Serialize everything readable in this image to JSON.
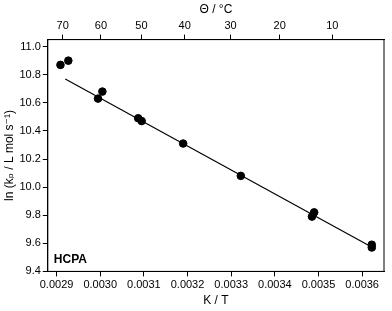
{
  "chart_data": {
    "type": "scatter",
    "x_label": "K / T",
    "x2_label": "Θ / °C",
    "y_label": "ln (kₚ / L mol s⁻¹)",
    "annotations": [
      "HCPA"
    ],
    "xlim": [
      0.00288,
      0.00365
    ],
    "xticks": [
      0.0029,
      {
        "value": 0.003,
        "label": "0.0030"
      },
      0.0031,
      0.0032,
      0.0033,
      0.0034,
      0.0035,
      0.0036
    ],
    "x2lim": [
      0.00288,
      0.00365
    ],
    "x2ticks": [
      {
        "value": 0.0029142,
        "label": "70"
      },
      {
        "value": 0.0030017,
        "label": "60"
      },
      {
        "value": 0.0030945,
        "label": "50"
      },
      {
        "value": 0.0031934,
        "label": "40"
      },
      {
        "value": 0.0032987,
        "label": "30"
      },
      {
        "value": 0.0034112,
        "label": "20"
      },
      {
        "value": 0.0035317,
        "label": "10"
      }
    ],
    "ylim": [
      9.4,
      11.05
    ],
    "yticks": [
      9.4,
      9.6,
      9.8,
      {
        "value": 10,
        "label": "10.0"
      },
      10.2,
      10.4,
      10.6,
      10.8,
      {
        "value": 11,
        "label": "11.0"
      }
    ],
    "grid": false,
    "series": [
      {
        "type": "scatter",
        "color": "#000000",
        "marker": "circle",
        "x": [
          0.002909,
          0.002927,
          0.002995,
          0.003005,
          0.003087,
          0.003095,
          0.00319,
          0.003322,
          0.003485,
          0.00349,
          0.003622,
          0.003622
        ],
        "values": [
          10.87,
          10.9,
          10.63,
          10.68,
          10.49,
          10.47,
          10.31,
          10.08,
          9.79,
          9.82,
          9.57,
          9.59
        ]
      },
      {
        "type": "line",
        "color": "#000000",
        "line_style": "solid",
        "x": [
          0.00292,
          0.00363
        ],
        "values": [
          10.77,
          9.56
        ]
      }
    ]
  }
}
